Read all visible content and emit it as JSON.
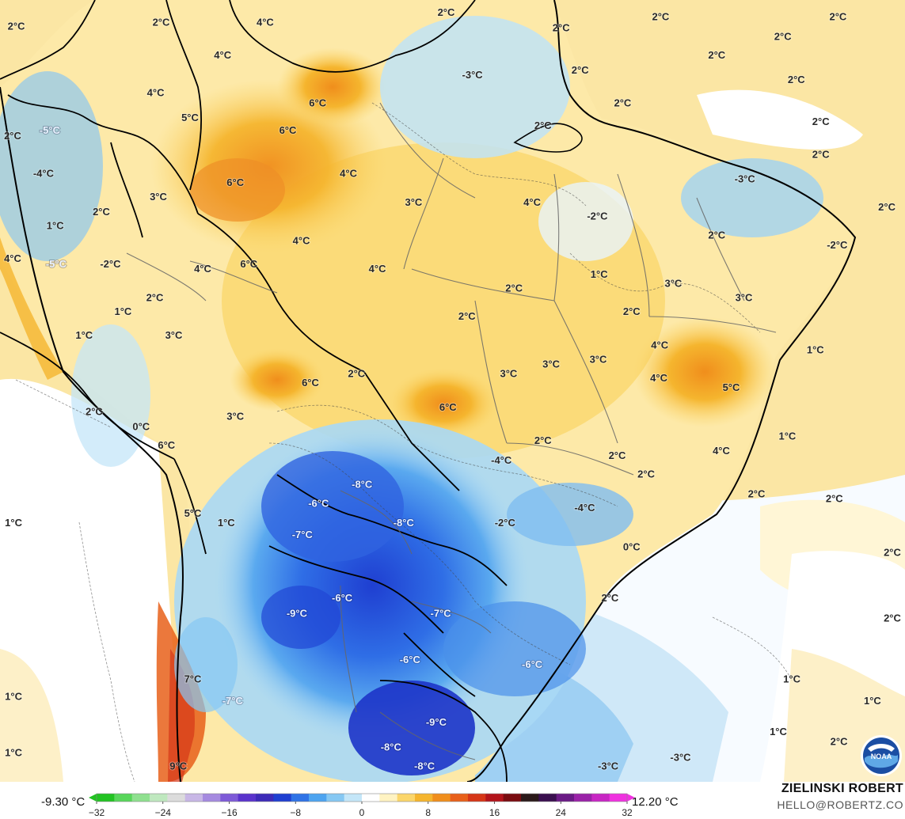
{
  "legend": {
    "min_label": "-9.30 °C",
    "max_label": "12.20 °C",
    "ticks": [
      "−32",
      "−24",
      "−16",
      "−8",
      "0",
      "8",
      "16",
      "24",
      "32"
    ],
    "range": [
      -32,
      32
    ],
    "colors": [
      "#22c322",
      "#58d65a",
      "#8fe08f",
      "#bfe8bf",
      "#dcdcdc",
      "#c8b7e6",
      "#a58ae0",
      "#7e5ad8",
      "#5a33cc",
      "#3d2bb8",
      "#1f3fd1",
      "#2f73e6",
      "#4da4f0",
      "#86c8f3",
      "#c4e6f8",
      "#ffffff",
      "#fff3c2",
      "#fbd66b",
      "#f5b52e",
      "#f08e1c",
      "#e8601a",
      "#d63617",
      "#b3141b",
      "#7a0c10",
      "#2b1a1a",
      "#3a0f4f",
      "#6a1a85",
      "#9a22a8",
      "#c826c4",
      "#f032e0"
    ]
  },
  "credit": {
    "name": "ZIELINSKI ROBERT",
    "email": "HELLO@ROBERTZ.CO"
  },
  "logo": "noaa-logo",
  "map_labels": [
    {
      "text": "2°C",
      "lon": 0.018,
      "lat": 0.033
    },
    {
      "text": "2°C",
      "lon": 0.178,
      "lat": 0.028
    },
    {
      "text": "4°C",
      "lon": 0.293,
      "lat": 0.028
    },
    {
      "text": "2°C",
      "lon": 0.493,
      "lat": 0.015
    },
    {
      "text": "2°C",
      "lon": 0.62,
      "lat": 0.035
    },
    {
      "text": "2°C",
      "lon": 0.73,
      "lat": 0.021
    },
    {
      "text": "2°C",
      "lon": 0.926,
      "lat": 0.021
    },
    {
      "text": "2°C",
      "lon": 0.865,
      "lat": 0.046
    },
    {
      "text": "4°C",
      "lon": 0.246,
      "lat": 0.07
    },
    {
      "text": "2°C",
      "lon": 0.792,
      "lat": 0.07
    },
    {
      "text": "-3°C",
      "lon": 0.522,
      "lat": 0.095
    },
    {
      "text": "2°C",
      "lon": 0.641,
      "lat": 0.089
    },
    {
      "text": "2°C",
      "lon": 0.88,
      "lat": 0.101
    },
    {
      "text": "2°C",
      "lon": 0.688,
      "lat": 0.131
    },
    {
      "text": "4°C",
      "lon": 0.172,
      "lat": 0.118
    },
    {
      "text": "6°C",
      "lon": 0.351,
      "lat": 0.131
    },
    {
      "text": "5°C",
      "lon": 0.21,
      "lat": 0.15
    },
    {
      "text": "2°C",
      "lon": 0.6,
      "lat": 0.16
    },
    {
      "text": "2°C",
      "lon": 0.907,
      "lat": 0.155
    },
    {
      "text": "-5°C",
      "lon": 0.055,
      "lat": 0.166
    },
    {
      "text": "6°C",
      "lon": 0.318,
      "lat": 0.166
    },
    {
      "text": "2°C",
      "lon": 0.014,
      "lat": 0.173
    },
    {
      "text": "2°C",
      "lon": 0.907,
      "lat": 0.197
    },
    {
      "text": "-4°C",
      "lon": 0.048,
      "lat": 0.221
    },
    {
      "text": "4°C",
      "lon": 0.385,
      "lat": 0.221
    },
    {
      "text": "-3°C",
      "lon": 0.823,
      "lat": 0.228
    },
    {
      "text": "6°C",
      "lon": 0.26,
      "lat": 0.233
    },
    {
      "text": "3°C",
      "lon": 0.175,
      "lat": 0.251
    },
    {
      "text": "3°C",
      "lon": 0.457,
      "lat": 0.258
    },
    {
      "text": "4°C",
      "lon": 0.588,
      "lat": 0.258
    },
    {
      "text": "2°C",
      "lon": 0.112,
      "lat": 0.27
    },
    {
      "text": "-2°C",
      "lon": 0.66,
      "lat": 0.276
    },
    {
      "text": "2°C",
      "lon": 0.98,
      "lat": 0.264
    },
    {
      "text": "1°C",
      "lon": 0.061,
      "lat": 0.288
    },
    {
      "text": "2°C",
      "lon": 0.792,
      "lat": 0.3
    },
    {
      "text": "4°C",
      "lon": 0.333,
      "lat": 0.307
    },
    {
      "text": "-2°C",
      "lon": 0.925,
      "lat": 0.313
    },
    {
      "text": "-5°C",
      "lon": 0.062,
      "lat": 0.337
    },
    {
      "text": "-2°C",
      "lon": 0.122,
      "lat": 0.337
    },
    {
      "text": "4°C",
      "lon": 0.224,
      "lat": 0.343
    },
    {
      "text": "6°C",
      "lon": 0.275,
      "lat": 0.337
    },
    {
      "text": "4°C",
      "lon": 0.417,
      "lat": 0.343
    },
    {
      "text": "4°C",
      "lon": 0.014,
      "lat": 0.33
    },
    {
      "text": "1°C",
      "lon": 0.662,
      "lat": 0.35
    },
    {
      "text": "3°C",
      "lon": 0.744,
      "lat": 0.362
    },
    {
      "text": "2°C",
      "lon": 0.568,
      "lat": 0.368
    },
    {
      "text": "2°C",
      "lon": 0.171,
      "lat": 0.38
    },
    {
      "text": "3°C",
      "lon": 0.822,
      "lat": 0.38
    },
    {
      "text": "1°C",
      "lon": 0.136,
      "lat": 0.398
    },
    {
      "text": "2°C",
      "lon": 0.698,
      "lat": 0.398
    },
    {
      "text": "2°C",
      "lon": 0.516,
      "lat": 0.404
    },
    {
      "text": "1°C",
      "lon": 0.093,
      "lat": 0.428
    },
    {
      "text": "3°C",
      "lon": 0.192,
      "lat": 0.428
    },
    {
      "text": "4°C",
      "lon": 0.729,
      "lat": 0.441
    },
    {
      "text": "1°C",
      "lon": 0.901,
      "lat": 0.447
    },
    {
      "text": "3°C",
      "lon": 0.609,
      "lat": 0.465
    },
    {
      "text": "3°C",
      "lon": 0.661,
      "lat": 0.459
    },
    {
      "text": "2°C",
      "lon": 0.394,
      "lat": 0.477
    },
    {
      "text": "3°C",
      "lon": 0.562,
      "lat": 0.477
    },
    {
      "text": "4°C",
      "lon": 0.728,
      "lat": 0.483
    },
    {
      "text": "6°C",
      "lon": 0.343,
      "lat": 0.489
    },
    {
      "text": "5°C",
      "lon": 0.808,
      "lat": 0.495
    },
    {
      "text": "2°C",
      "lon": 0.104,
      "lat": 0.526
    },
    {
      "text": "6°C",
      "lon": 0.495,
      "lat": 0.52
    },
    {
      "text": "3°C",
      "lon": 0.26,
      "lat": 0.532
    },
    {
      "text": "0°C",
      "lon": 0.156,
      "lat": 0.545
    },
    {
      "text": "1°C",
      "lon": 0.87,
      "lat": 0.557
    },
    {
      "text": "2°C",
      "lon": 0.6,
      "lat": 0.563
    },
    {
      "text": "6°C",
      "lon": 0.184,
      "lat": 0.569
    },
    {
      "text": "2°C",
      "lon": 0.682,
      "lat": 0.582
    },
    {
      "text": "4°C",
      "lon": 0.797,
      "lat": 0.576
    },
    {
      "text": "-4°C",
      "lon": 0.554,
      "lat": 0.588
    },
    {
      "text": "2°C",
      "lon": 0.714,
      "lat": 0.606
    },
    {
      "text": "-8°C",
      "lon": 0.4,
      "lat": 0.619
    },
    {
      "text": "2°C",
      "lon": 0.836,
      "lat": 0.631
    },
    {
      "text": "2°C",
      "lon": 0.922,
      "lat": 0.637
    },
    {
      "text": "-6°C",
      "lon": 0.352,
      "lat": 0.643
    },
    {
      "text": "-4°C",
      "lon": 0.646,
      "lat": 0.649
    },
    {
      "text": "5°C",
      "lon": 0.213,
      "lat": 0.656
    },
    {
      "text": "-8°C",
      "lon": 0.446,
      "lat": 0.668
    },
    {
      "text": "-2°C",
      "lon": 0.558,
      "lat": 0.668
    },
    {
      "text": "1°C",
      "lon": 0.015,
      "lat": 0.668
    },
    {
      "text": "1°C",
      "lon": 0.25,
      "lat": 0.668
    },
    {
      "text": "-7°C",
      "lon": 0.334,
      "lat": 0.683
    },
    {
      "text": "0°C",
      "lon": 0.698,
      "lat": 0.699
    },
    {
      "text": "2°C",
      "lon": 0.986,
      "lat": 0.706
    },
    {
      "text": "-6°C",
      "lon": 0.378,
      "lat": 0.764
    },
    {
      "text": "2°C",
      "lon": 0.674,
      "lat": 0.764
    },
    {
      "text": "-9°C",
      "lon": 0.328,
      "lat": 0.784
    },
    {
      "text": "-7°C",
      "lon": 0.487,
      "lat": 0.784
    },
    {
      "text": "2°C",
      "lon": 0.986,
      "lat": 0.79
    },
    {
      "text": "-6°C",
      "lon": 0.453,
      "lat": 0.843
    },
    {
      "text": "-6°C",
      "lon": 0.588,
      "lat": 0.849
    },
    {
      "text": "7°C",
      "lon": 0.213,
      "lat": 0.868
    },
    {
      "text": "1°C",
      "lon": 0.875,
      "lat": 0.868
    },
    {
      "text": "-7°C",
      "lon": 0.257,
      "lat": 0.896
    },
    {
      "text": "1°C",
      "lon": 0.015,
      "lat": 0.89
    },
    {
      "text": "1°C",
      "lon": 0.964,
      "lat": 0.896
    },
    {
      "text": "-9°C",
      "lon": 0.482,
      "lat": 0.923
    },
    {
      "text": "-8°C",
      "lon": 0.432,
      "lat": 0.955
    },
    {
      "text": "1°C",
      "lon": 0.86,
      "lat": 0.935
    },
    {
      "text": "2°C",
      "lon": 0.927,
      "lat": 0.948
    },
    {
      "text": "1°C",
      "lon": 0.015,
      "lat": 0.962
    },
    {
      "text": "9°C",
      "lon": 0.197,
      "lat": 0.979
    },
    {
      "text": "-8°C",
      "lon": 0.469,
      "lat": 0.979
    },
    {
      "text": "-3°C",
      "lon": 0.672,
      "lat": 0.979
    },
    {
      "text": "-3°C",
      "lon": 0.752,
      "lat": 0.968
    }
  ]
}
